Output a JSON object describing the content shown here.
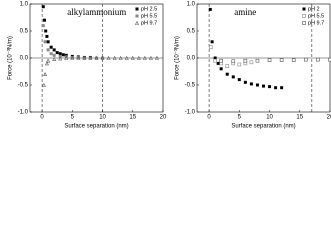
{
  "chart_data": [
    {
      "type": "scatter",
      "annotation": "alkylammonium",
      "x_label": "Surface separation (nm)",
      "y_label": "Force (10⁻³N/m)",
      "xlim": [
        -2,
        20
      ],
      "ylim": [
        -1.0,
        1.0
      ],
      "xticks": [
        0,
        5,
        10,
        15,
        20
      ],
      "yticks": [
        {
          "value": -1,
          "label": "-1.0"
        },
        -0.5,
        {
          "value": 0,
          "label": "0.0"
        },
        0.5,
        {
          "value": 1,
          "label": "1.0"
        }
      ],
      "vlines": [
        0,
        10
      ],
      "legend": "upper right",
      "series": [
        {
          "name": "pH 2.5",
          "color": "#000000",
          "marker": "square-filled",
          "x": [
            0.2,
            0.4,
            0.6,
            0.8,
            1,
            1.5,
            2,
            2.5,
            3,
            3.5,
            4,
            5,
            6,
            7,
            8,
            9,
            10
          ],
          "values": [
            0.95,
            0.7,
            0.5,
            0.4,
            0.3,
            0.2,
            0.15,
            0.1,
            0.08,
            0.06,
            0.05,
            0.03,
            0.02,
            0.01,
            0.01,
            0,
            0
          ]
        },
        {
          "name": "pH 5.5",
          "color": "#888888",
          "marker": "square-filled",
          "x": [
            0.2,
            0.5,
            1,
            1.5,
            2,
            3,
            4,
            5,
            6,
            7,
            8,
            9,
            10
          ],
          "values": [
            0.6,
            0.3,
            0.15,
            0.08,
            0.05,
            0.03,
            0.02,
            0.01,
            0.01,
            0,
            0,
            0,
            0
          ]
        },
        {
          "name": "pH 9.7",
          "color": "#555555",
          "marker": "triangle-open",
          "x": [
            0.3,
            0.5,
            0.8,
            1,
            2,
            3,
            4,
            5,
            6,
            7,
            8,
            9,
            10,
            11,
            12,
            13,
            14,
            15,
            16,
            17,
            18,
            19
          ],
          "values": [
            -0.5,
            -0.3,
            -0.1,
            -0.05,
            -0.02,
            -0.01,
            0,
            0,
            0,
            0,
            0,
            0,
            0,
            0,
            0,
            0,
            0,
            0,
            0,
            0,
            0,
            0
          ]
        }
      ]
    },
    {
      "type": "scatter",
      "annotation": "amine",
      "x_label": "Surface separation (nm)",
      "y_label": "Force (10⁻³N/m)",
      "xlim": [
        -2,
        20
      ],
      "ylim": [
        -1.0,
        1.0
      ],
      "xticks": [
        0,
        5,
        10,
        15,
        20
      ],
      "yticks": [
        {
          "value": -1,
          "label": "-1.0"
        },
        -0.5,
        {
          "value": 0,
          "label": "0.0"
        },
        0.5,
        {
          "value": 1,
          "label": "1.0"
        }
      ],
      "vlines": [
        0,
        17
      ],
      "legend": "upper right",
      "series": [
        {
          "name": "pH 2",
          "color": "#000000",
          "marker": "square-filled",
          "x": [
            0.2,
            0.5,
            1,
            1.5,
            2,
            3,
            4,
            5,
            6,
            7,
            8,
            9,
            10,
            11,
            12
          ],
          "values": [
            0.9,
            0.3,
            0,
            -0.1,
            -0.2,
            -0.3,
            -0.35,
            -0.4,
            -0.45,
            -0.48,
            -0.5,
            -0.52,
            -0.53,
            -0.55,
            -0.55
          ]
        },
        {
          "name": "pH 5.5",
          "color": "#888888",
          "marker": "square-open",
          "x": [
            0.3,
            1,
            2,
            3,
            4,
            5,
            6,
            7
          ],
          "values": [
            0.2,
            -0.05,
            -0.1,
            -0.15,
            -0.1,
            -0.12,
            -0.1,
            -0.08
          ]
        },
        {
          "name": "pH 9.7",
          "color": "#555555",
          "marker": "square-open",
          "x": [
            2,
            4,
            6,
            8,
            10,
            12,
            14,
            16,
            18,
            20
          ],
          "values": [
            -0.05,
            -0.06,
            -0.05,
            -0.05,
            -0.04,
            -0.04,
            -0.04,
            -0.03,
            -0.03,
            -0.03
          ]
        }
      ]
    }
  ]
}
